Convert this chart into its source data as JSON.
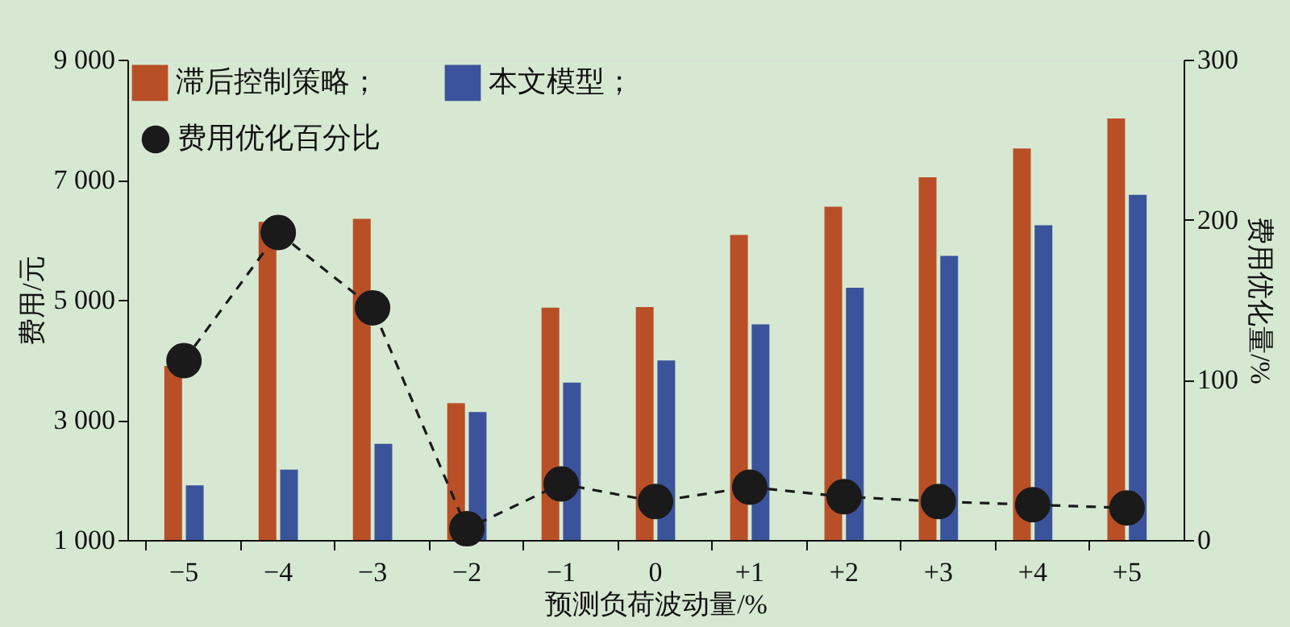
{
  "chart_data": {
    "type": "bar",
    "xlabel": "预测负荷波动量/%",
    "ylabel": "费用/元",
    "y2label": "费用优化量/%",
    "categories": [
      "−5",
      "−4",
      "−3",
      "−2",
      "−1",
      "0",
      "+1",
      "+2",
      "+3",
      "+4",
      "+5"
    ],
    "series": [
      {
        "name": "滞后控制策略；",
        "color": "#b94f27",
        "values": [
          3900,
          6300,
          6350,
          3280,
          4870,
          4880,
          6080,
          6550,
          7040,
          7520,
          8020
        ]
      },
      {
        "name": "本文模型；",
        "color": "#3a539b",
        "values": [
          1910,
          2170,
          2600,
          3130,
          3620,
          3990,
          4590,
          5200,
          5730,
          6240,
          6750
        ]
      },
      {
        "name": "费用优化百分比",
        "type": "line",
        "axis": "y2",
        "color": "#1a1a1a",
        "marker": "circle",
        "line_style": "dashed",
        "values": [
          112,
          192,
          145,
          7,
          35,
          24,
          33,
          27,
          24,
          22,
          20
        ]
      }
    ],
    "ylim": [
      1000,
      9000
    ],
    "yticks": [
      {
        "value": 1000,
        "label": "1 000"
      },
      {
        "value": 3000,
        "label": "3 000"
      },
      {
        "value": 5000,
        "label": "5 000"
      },
      {
        "value": 7000,
        "label": "7 000"
      },
      {
        "value": 9000,
        "label": "9 000"
      }
    ],
    "y2lim": [
      0,
      300
    ],
    "y2ticks": [
      0,
      100,
      200,
      300
    ],
    "grid": false,
    "legend": "top left"
  }
}
